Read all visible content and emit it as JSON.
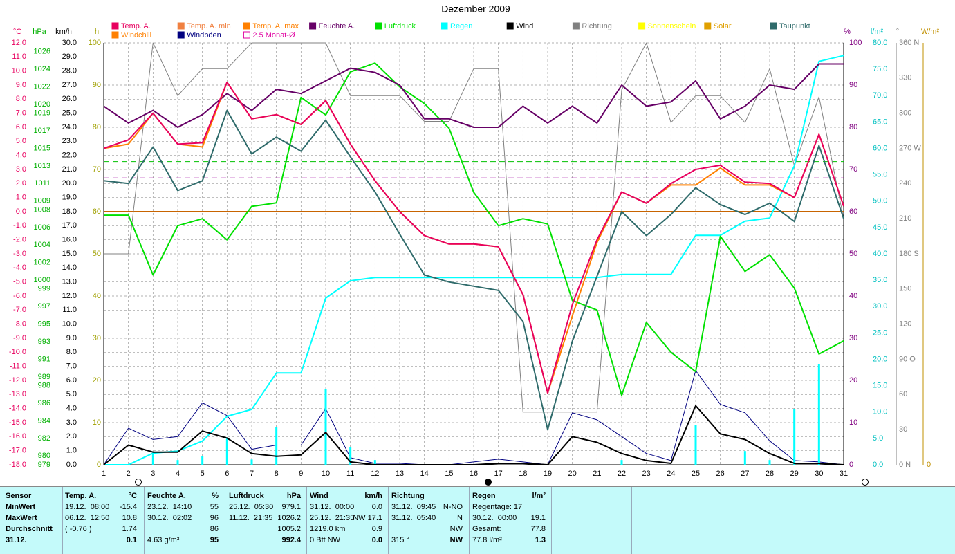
{
  "chart_data": {
    "type": "line",
    "title": "Dezember 2009",
    "x": [
      1,
      2,
      3,
      4,
      5,
      6,
      7,
      8,
      9,
      10,
      11,
      12,
      13,
      14,
      15,
      16,
      17,
      18,
      19,
      20,
      21,
      22,
      23,
      24,
      25,
      26,
      27,
      28,
      29,
      30,
      31
    ],
    "xlim": [
      1,
      31
    ],
    "xticks": [
      1,
      2,
      3,
      4,
      5,
      6,
      7,
      8,
      9,
      10,
      11,
      12,
      13,
      14,
      15,
      16,
      17,
      18,
      19,
      20,
      21,
      22,
      23,
      24,
      25,
      26,
      27,
      28,
      29,
      30,
      31
    ],
    "grid": true,
    "axes": {
      "temp": {
        "label": "°C",
        "color": "#e8005f",
        "lim": [
          -18,
          12
        ],
        "ticks": [
          {
            "value": 12,
            "label": "12.0"
          },
          {
            "value": 11,
            "label": "11.0"
          },
          {
            "value": 10,
            "label": "10.0"
          },
          {
            "value": 9,
            "label": "9.0"
          },
          {
            "value": 8,
            "label": "8.0"
          },
          {
            "value": 7,
            "label": "7.0"
          },
          {
            "value": 6,
            "label": "6.0"
          },
          {
            "value": 5,
            "label": "5.0"
          },
          {
            "value": 4,
            "label": "4.0"
          },
          {
            "value": 3,
            "label": "3.0"
          },
          {
            "value": 2,
            "label": "2.0"
          },
          {
            "value": 1,
            "label": "1.0"
          },
          {
            "value": 0,
            "label": "0.0"
          },
          {
            "value": -1,
            "label": "-1.0"
          },
          {
            "value": -2,
            "label": "-2.0"
          },
          {
            "value": -3,
            "label": "-3.0"
          },
          {
            "value": -4,
            "label": "-4.0"
          },
          {
            "value": -5,
            "label": "-5.0"
          },
          {
            "value": -6,
            "label": "-6.0"
          },
          {
            "value": -7,
            "label": "-7.0"
          },
          {
            "value": -8,
            "label": "-8.0"
          },
          {
            "value": -9,
            "label": "-9.0"
          },
          {
            "value": -10,
            "label": "-10.0"
          },
          {
            "value": -11,
            "label": "-11.0"
          },
          {
            "value": -12,
            "label": "-12.0"
          },
          {
            "value": -13,
            "label": "-13.0"
          },
          {
            "value": -14,
            "label": "-14.0"
          },
          {
            "value": -15,
            "label": "-15.0"
          },
          {
            "value": -16,
            "label": "-16.0"
          },
          {
            "value": -17,
            "label": "-17.0"
          },
          {
            "value": -18,
            "label": "-18.0"
          }
        ]
      },
      "hpa": {
        "label": "hPa",
        "color": "#00b000",
        "lim": [
          979,
          1027
        ],
        "ticks": [
          1026,
          1024,
          1022,
          1020,
          1019,
          1017,
          1015,
          1013,
          1011,
          1009,
          1008,
          1006,
          1004,
          1002,
          1000,
          999,
          997,
          995,
          993,
          991,
          989,
          988,
          986,
          984,
          982,
          980,
          979
        ]
      },
      "kmh": {
        "label": "km/h",
        "color": "#000000",
        "lim": [
          0,
          30
        ],
        "ticks": [
          {
            "value": 30,
            "label": "30.0"
          },
          {
            "value": 29,
            "label": "29.0"
          },
          {
            "value": 28,
            "label": "28.0"
          },
          {
            "value": 27,
            "label": "27.0"
          },
          {
            "value": 26,
            "label": "26.0"
          },
          {
            "value": 25,
            "label": "25.0"
          },
          {
            "value": 24,
            "label": "24.0"
          },
          {
            "value": 23,
            "label": "23.0"
          },
          {
            "value": 22,
            "label": "22.0"
          },
          {
            "value": 21,
            "label": "21.0"
          },
          {
            "value": 20,
            "label": "20.0"
          },
          {
            "value": 19,
            "label": "19.0"
          },
          {
            "value": 18,
            "label": "18.0"
          },
          {
            "value": 17,
            "label": "17.0"
          },
          {
            "value": 16,
            "label": "16.0"
          },
          {
            "value": 15,
            "label": "15.0"
          },
          {
            "value": 14,
            "label": "14.0"
          },
          {
            "value": 13,
            "label": "13.0"
          },
          {
            "value": 12,
            "label": "12.0"
          },
          {
            "value": 11,
            "label": "11.0"
          },
          {
            "value": 10,
            "label": "10.0"
          },
          {
            "value": 9,
            "label": "9.0"
          },
          {
            "value": 8,
            "label": "8.0"
          },
          {
            "value": 7,
            "label": "7.0"
          },
          {
            "value": 6,
            "label": "6.0"
          },
          {
            "value": 5,
            "label": "5.0"
          },
          {
            "value": 4,
            "label": "4.0"
          },
          {
            "value": 3,
            "label": "3.0"
          },
          {
            "value": 2,
            "label": "2.0"
          },
          {
            "value": 1,
            "label": "1.0"
          },
          {
            "value": 0,
            "label": "0.0"
          }
        ]
      },
      "sun": {
        "label": "h",
        "color": "#a0a000",
        "lim": [
          0,
          100
        ],
        "ticks": [
          100,
          90,
          80,
          70,
          60,
          50,
          40,
          30,
          20,
          10,
          0
        ]
      },
      "hum": {
        "label": "%",
        "color": "#800080",
        "lim": [
          0,
          100
        ],
        "ticks": [
          100,
          90,
          80,
          70,
          60,
          50,
          40,
          30,
          20,
          10,
          0
        ]
      },
      "rain": {
        "label": "l/m²",
        "color": "#00c0c0",
        "lim": [
          0,
          80
        ],
        "ticks": [
          {
            "value": 80,
            "label": "80.0"
          },
          {
            "value": 75,
            "label": "75.0"
          },
          {
            "value": 70,
            "label": "70.0"
          },
          {
            "value": 65,
            "label": "65.0"
          },
          {
            "value": 60,
            "label": "60.0"
          },
          {
            "value": 55,
            "label": "55.0"
          },
          {
            "value": 50,
            "label": "50.0"
          },
          {
            "value": 45,
            "label": "45.0"
          },
          {
            "value": 40,
            "label": "40.0"
          },
          {
            "value": 35,
            "label": "35.0"
          },
          {
            "value": 30,
            "label": "30.0"
          },
          {
            "value": 25,
            "label": "25.0"
          },
          {
            "value": 20,
            "label": "20.0"
          },
          {
            "value": 15,
            "label": "15.0"
          },
          {
            "value": 10,
            "label": "10.0"
          },
          {
            "value": 5,
            "label": "5.0"
          },
          {
            "value": 0,
            "label": "0.0"
          }
        ]
      },
      "dir": {
        "label": "°",
        "color": "#808080",
        "lim": [
          0,
          360
        ],
        "ticks": [
          {
            "value": 360,
            "label": "360 N"
          },
          330,
          300,
          {
            "value": 270,
            "label": "270 W"
          },
          240,
          210,
          {
            "value": 180,
            "label": "180 S"
          },
          150,
          120,
          {
            "value": 90,
            "label": "90 O"
          },
          60,
          30,
          {
            "value": 0,
            "label": "0 N"
          }
        ]
      },
      "solar": {
        "label": "W/m²",
        "color": "#c09000",
        "ticks": [
          0
        ]
      }
    },
    "series": [
      {
        "name": "Temp. A.",
        "color": "#e8005f",
        "axis": "temp",
        "values": [
          4.5,
          5.1,
          7.0,
          4.8,
          4.9,
          9.2,
          6.6,
          6.9,
          6.2,
          7.9,
          4.8,
          2.2,
          0.0,
          -1.7,
          -2.3,
          -2.3,
          -2.5,
          -5.9,
          -12.9,
          -6.6,
          -2.0,
          1.4,
          0.6,
          2.0,
          3.0,
          3.3,
          2.1,
          2.0,
          1.0,
          5.5,
          0.4
        ]
      },
      {
        "name": "Temp. A. min",
        "color": "#f08040"
      },
      {
        "name": "Temp. A. max",
        "color": "#ff8000"
      },
      {
        "name": "Feuchte A.",
        "color": "#660066",
        "axis": "hum",
        "values": [
          85,
          81,
          84,
          80,
          83,
          88,
          84,
          89,
          88,
          91,
          94,
          93,
          90,
          82,
          82,
          80,
          80,
          85,
          81,
          85,
          81,
          90,
          85,
          86,
          91,
          82,
          85,
          90,
          89,
          95,
          95
        ]
      },
      {
        "name": "Luftdruck",
        "color": "#00e000",
        "axis": "hpa",
        "values": [
          1007.4,
          1007.4,
          1000.6,
          1006.2,
          1007.0,
          1004.6,
          1008.4,
          1008.8,
          1020.8,
          1018.8,
          1023.7,
          1024.7,
          1022.0,
          1020.1,
          1017.3,
          1010.0,
          1006.2,
          1007.0,
          1006.4,
          997.7,
          996.6,
          986.9,
          995.2,
          991.8,
          989.6,
          1005.0,
          1001.0,
          1002.9,
          999.1,
          991.6,
          993.1
        ]
      },
      {
        "name": "Regen",
        "color": "#00ffff",
        "axis": "rain",
        "values": [
          0,
          0,
          2.2,
          2.6,
          4.5,
          9.2,
          10.5,
          17.4,
          17.4,
          31.6,
          34.9,
          35.5,
          35.5,
          35.5,
          35.5,
          35.5,
          35.5,
          35.5,
          35.5,
          35.5,
          35.5,
          36.1,
          36.1,
          36.1,
          43.5,
          43.5,
          46.2,
          46.8,
          56.7,
          76.5,
          77.6
        ],
        "bars": [
          0,
          0,
          2.2,
          0.9,
          1.6,
          5.2,
          1.0,
          7.2,
          0,
          14.3,
          3.3,
          0.9,
          0,
          0,
          0,
          0,
          0,
          0,
          0,
          0,
          0,
          0.9,
          0,
          0,
          7.6,
          0,
          2.6,
          0.9,
          10.5,
          19.1,
          0
        ]
      },
      {
        "name": "Wind",
        "color": "#000000",
        "axis": "kmh",
        "values": [
          0,
          1.4,
          0.9,
          0.9,
          2.4,
          1.9,
          0.8,
          0.6,
          0.7,
          2.3,
          0.2,
          0,
          0,
          0,
          0,
          0,
          0.1,
          0.1,
          0,
          2.0,
          1.6,
          0.8,
          0.3,
          0.1,
          4.2,
          2.2,
          1.8,
          0.8,
          0.1,
          0.1,
          0
        ]
      },
      {
        "name": "Richtung",
        "color": "#808080",
        "axis": "dir",
        "values": [
          180,
          180,
          360,
          315,
          338,
          338,
          360,
          360,
          360,
          360,
          315,
          315,
          315,
          293,
          293,
          338,
          338,
          45,
          45,
          45,
          45,
          320,
          360,
          292,
          315,
          315,
          292,
          338,
          255,
          314,
          210
        ]
      },
      {
        "name": "Sonnenschein",
        "color": "#ffff00"
      },
      {
        "name": "Solar",
        "color": "#e0a000"
      },
      {
        "name": "Taupunkt",
        "color": "#2f6b6b",
        "axis": "temp",
        "values": [
          2.2,
          2.0,
          4.6,
          1.5,
          2.2,
          7.2,
          4.1,
          5.3,
          4.3,
          6.5,
          3.9,
          1.4,
          -1.6,
          -4.5,
          -5.0,
          -5.3,
          -5.6,
          -7.8,
          -15.5,
          -9.2,
          -4.6,
          0.0,
          -1.7,
          -0.2,
          1.7,
          0.5,
          -0.2,
          0.6,
          -0.7,
          4.7,
          -0.5
        ]
      },
      {
        "name": "Windchill",
        "color": "#ff8000",
        "axis": "temp",
        "values": [
          4.5,
          4.8,
          7.0,
          4.8,
          4.6,
          9.2,
          6.6,
          6.9,
          6.2,
          7.9,
          4.8,
          2.2,
          0.0,
          -1.7,
          -2.3,
          -2.3,
          -2.5,
          -5.9,
          -12.9,
          -7.4,
          -2.2,
          1.4,
          0.6,
          1.9,
          1.9,
          3.1,
          1.9,
          1.9,
          1.0,
          5.5,
          0.4
        ]
      },
      {
        "name": "Windböen",
        "color": "#000080",
        "axis": "kmh",
        "values": [
          0,
          2.6,
          1.8,
          2.0,
          4.4,
          3.5,
          1.1,
          1.4,
          1.4,
          4.0,
          0.5,
          0.1,
          0.1,
          0,
          0,
          0.2,
          0.4,
          0.2,
          0,
          3.7,
          3.2,
          2.0,
          0.8,
          0.3,
          6.7,
          4.3,
          3.7,
          1.7,
          0.3,
          0.2,
          0
        ]
      },
      {
        "name": "2.5 Monat-Ø",
        "color": "#e000a0",
        "legend_marker": "outline"
      }
    ],
    "reference_lines": [
      {
        "axis": "temp",
        "value": 0,
        "color": "#c86400",
        "dashed": false
      },
      {
        "axis": "hpa",
        "value": 1013.5,
        "color": "#00c000",
        "dashed": true
      },
      {
        "axis": "hum",
        "value": 68,
        "color": "#a000a0",
        "dashed": true
      }
    ],
    "table": {
      "row_labels": [
        "Sensor",
        "MinWert",
        "MaxWert",
        "Durchschnitt",
        "31.12."
      ],
      "columns": [
        {
          "header": "Temp. A.",
          "unit": "°C",
          "rows": [
            [
              "19.12.  08:00",
              "-15.4"
            ],
            [
              "06.12.  12:50",
              "10.8"
            ],
            [
              "( -0.76 )",
              "1.74"
            ],
            [
              null,
              "0.1"
            ]
          ]
        },
        {
          "header": "Feuchte A.",
          "unit": "%",
          "rows": [
            [
              "23.12.  14:10",
              "55"
            ],
            [
              "30.12.  02:02",
              "96"
            ],
            [
              null,
              "86"
            ],
            [
              "4.63 g/m³",
              "95"
            ]
          ]
        },
        {
          "header": "Luftdruck",
          "unit": "hPa",
          "rows": [
            [
              "25.12.  05:30",
              "979.1"
            ],
            [
              "11.12.  21:35",
              "1026.2"
            ],
            [
              null,
              "1005.2"
            ],
            [
              null,
              "992.4"
            ]
          ]
        },
        {
          "header": "Wind",
          "unit": "km/h",
          "rows": [
            [
              "31.12.  00:00",
              "0.0"
            ],
            [
              "25.12.  21:35",
              "NW 17.1"
            ],
            [
              "1219.0 km",
              "0.9"
            ],
            [
              "0 Bft NW",
              "0.0"
            ]
          ]
        },
        {
          "header": "Richtung",
          "rows": [
            [
              "31.12.  09:45",
              "N-NO"
            ],
            [
              "31.12.  05:40",
              "N"
            ],
            [
              null,
              "NW"
            ],
            [
              "315 °",
              "NW"
            ]
          ]
        },
        {
          "header": "Regen",
          "unit": "l/m²",
          "rows": [
            [
              "Regentage: 17",
              null
            ],
            [
              "30.12.  00:00",
              "19.1"
            ],
            [
              "Gesamt:",
              "77.8"
            ],
            [
              "77.8 l/m²",
              "1.3"
            ]
          ]
        }
      ]
    }
  }
}
